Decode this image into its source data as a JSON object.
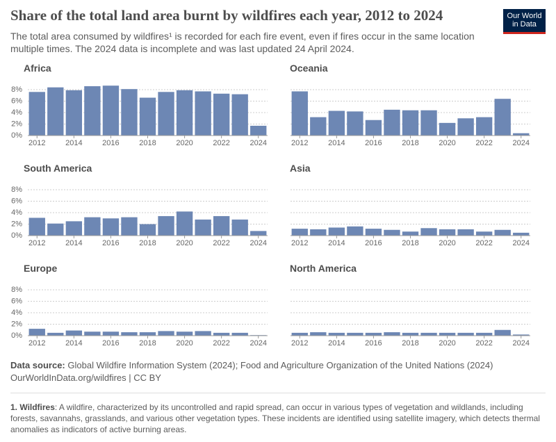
{
  "title": "Share of the total land area burnt by wildfires each year, 2012 to 2024",
  "subtitle": "The total area consumed by wildfires¹ is recorded for each fire event, even if fires occur in the same location multiple times. The 2024 data is incomplete and was last updated 24 April 2024.",
  "logo": [
    "Our World",
    "in Data"
  ],
  "source_label": "Data source:",
  "source": "Global Wildfire Information System (2024); Food and Agriculture Organization of the United Nations (2024)",
  "source_url": "OurWorldInData.org/wildfires | CC BY",
  "footnote": {
    "label": "1. Wildfires",
    "text": ": A wildfire, characterized by its uncontrolled and rapid spread, can occur in various types of vegetation and wildlands, including forests, savannahs, grasslands, and various other vegetation types. These incidents are identified using satellite imagery, which detects thermal anomalies as indicators of active burning areas."
  },
  "chart_data": [
    {
      "type": "bar",
      "title": "Africa",
      "color": "#6d87b4",
      "grid": true,
      "x": [
        2012,
        2013,
        2014,
        2015,
        2016,
        2017,
        2018,
        2019,
        2020,
        2021,
        2022,
        2023,
        2024
      ],
      "values": [
        7.6,
        8.4,
        7.9,
        8.6,
        8.7,
        8.1,
        6.6,
        7.6,
        7.9,
        7.7,
        7.3,
        7.2,
        1.7
      ],
      "xlim": [
        2011.5,
        2024.5
      ],
      "xticks": [
        2012,
        2014,
        2016,
        2018,
        2020,
        2022,
        2024
      ],
      "ylim": [
        0,
        8.8
      ],
      "yticks": [
        {
          "value": 0,
          "label": "0%"
        },
        {
          "value": 2,
          "label": "2%"
        },
        {
          "value": 4,
          "label": "4%"
        },
        {
          "value": 6,
          "label": "6%"
        },
        {
          "value": 8,
          "label": "8%"
        }
      ]
    },
    {
      "type": "bar",
      "title": "Oceania",
      "color": "#6d87b4",
      "grid": true,
      "x": [
        2012,
        2013,
        2014,
        2015,
        2016,
        2017,
        2018,
        2019,
        2020,
        2021,
        2022,
        2023,
        2024
      ],
      "values": [
        7.7,
        3.2,
        4.3,
        4.2,
        2.7,
        4.5,
        4.4,
        4.4,
        2.2,
        3.0,
        3.2,
        6.4,
        0.4
      ],
      "xlim": [
        2011.5,
        2024.5
      ],
      "xticks": [
        2012,
        2014,
        2016,
        2018,
        2020,
        2022,
        2024
      ],
      "ylim": [
        0,
        8.8
      ],
      "yticks": [
        0,
        2,
        4,
        6,
        8
      ]
    },
    {
      "type": "bar",
      "title": "South America",
      "color": "#6d87b4",
      "grid": true,
      "x": [
        2012,
        2013,
        2014,
        2015,
        2016,
        2017,
        2018,
        2019,
        2020,
        2021,
        2022,
        2023,
        2024
      ],
      "values": [
        3.1,
        2.1,
        2.5,
        3.2,
        3.0,
        3.2,
        2.0,
        3.4,
        4.2,
        2.8,
        3.4,
        2.8,
        0.8
      ],
      "xlim": [
        2011.5,
        2024.5
      ],
      "xticks": [
        2012,
        2014,
        2016,
        2018,
        2020,
        2022,
        2024
      ],
      "ylim": [
        0,
        8.8
      ],
      "yticks": [
        {
          "value": 0,
          "label": "0%"
        },
        {
          "value": 2,
          "label": "2%"
        },
        {
          "value": 4,
          "label": "4%"
        },
        {
          "value": 6,
          "label": "6%"
        },
        {
          "value": 8,
          "label": "8%"
        }
      ]
    },
    {
      "type": "bar",
      "title": "Asia",
      "color": "#6d87b4",
      "grid": true,
      "x": [
        2012,
        2013,
        2014,
        2015,
        2016,
        2017,
        2018,
        2019,
        2020,
        2021,
        2022,
        2023,
        2024
      ],
      "values": [
        1.2,
        1.1,
        1.4,
        1.6,
        1.2,
        1.0,
        0.7,
        1.3,
        1.1,
        1.1,
        0.7,
        1.0,
        0.5
      ],
      "xlim": [
        2011.5,
        2024.5
      ],
      "xticks": [
        2012,
        2014,
        2016,
        2018,
        2020,
        2022,
        2024
      ],
      "ylim": [
        0,
        8.8
      ],
      "yticks": [
        0,
        2,
        4,
        6,
        8
      ]
    },
    {
      "type": "bar",
      "title": "Europe",
      "color": "#6d87b4",
      "grid": true,
      "x": [
        2012,
        2013,
        2014,
        2015,
        2016,
        2017,
        2018,
        2019,
        2020,
        2021,
        2022,
        2023,
        2024
      ],
      "values": [
        1.2,
        0.5,
        0.9,
        0.7,
        0.7,
        0.6,
        0.6,
        0.8,
        0.7,
        0.8,
        0.5,
        0.5,
        0.1
      ],
      "xlim": [
        2011.5,
        2024.5
      ],
      "xticks": [
        2012,
        2014,
        2016,
        2018,
        2020,
        2022,
        2024
      ],
      "ylim": [
        0,
        8.8
      ],
      "yticks": [
        {
          "value": 0,
          "label": "0%"
        },
        {
          "value": 2,
          "label": "2%"
        },
        {
          "value": 4,
          "label": "4%"
        },
        {
          "value": 6,
          "label": "6%"
        },
        {
          "value": 8,
          "label": "8%"
        }
      ]
    },
    {
      "type": "bar",
      "title": "North America",
      "color": "#6d87b4",
      "grid": true,
      "x": [
        2012,
        2013,
        2014,
        2015,
        2016,
        2017,
        2018,
        2019,
        2020,
        2021,
        2022,
        2023,
        2024
      ],
      "values": [
        0.5,
        0.6,
        0.5,
        0.5,
        0.5,
        0.6,
        0.5,
        0.5,
        0.5,
        0.5,
        0.5,
        1.0,
        0.2
      ],
      "xlim": [
        2011.5,
        2024.5
      ],
      "xticks": [
        2012,
        2014,
        2016,
        2018,
        2020,
        2022,
        2024
      ],
      "ylim": [
        0,
        8.8
      ],
      "yticks": [
        0,
        2,
        4,
        6,
        8
      ]
    }
  ]
}
